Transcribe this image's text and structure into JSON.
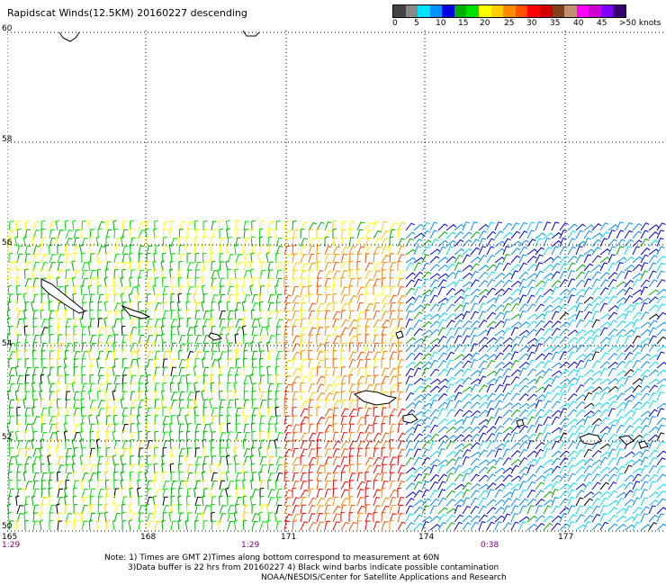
{
  "title": "Rapidscat Winds(12.5KM) 20160227 descending",
  "colorbar": {
    "colors": [
      "#444444",
      "#888888",
      "#00e0ff",
      "#0090ff",
      "#0000e0",
      "#00b000",
      "#00e000",
      "#ffff00",
      "#ffd000",
      "#ff8c00",
      "#ff5000",
      "#ff0000",
      "#d00000",
      "#804020",
      "#c09070",
      "#ff00ff",
      "#d000d0",
      "#8000ff",
      "#3a0070"
    ],
    "labels": [
      "0",
      "5",
      "10",
      "15",
      "20",
      "25",
      "30",
      "35",
      "40",
      "45",
      ">50 knots"
    ]
  },
  "map": {
    "lat_labels": [
      "60",
      "58",
      "56",
      "54",
      "52",
      "50"
    ],
    "lon_labels": [
      "165",
      "168",
      "171",
      "174",
      "177"
    ],
    "time_labels": [
      "1:29",
      "1:29",
      "0:38"
    ]
  },
  "notes": [
    "Note: 1) Times are GMT 2)Times along bottom correspond to measurement at 60N",
    "3)Data buffer is 22 hrs from 20160227 4) Black wind barbs indicate possible contamination"
  ],
  "credit": "NOAA/NESDIS/Center for Satellite Applications and Research"
}
